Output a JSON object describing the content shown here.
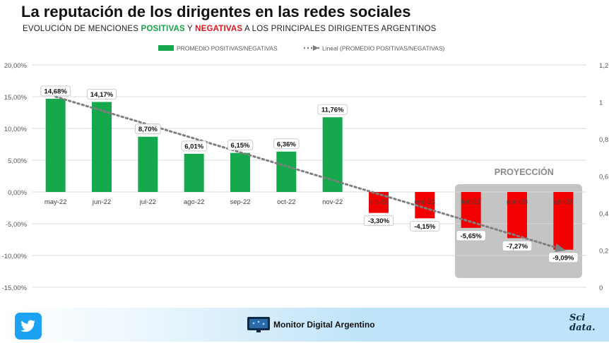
{
  "header": {
    "title": "La reputación de los dirigentes en las redes sociales",
    "subtitle_pre": "EVOLUCIÓN  DE MENCIONES ",
    "subtitle_pos": "POSITIVAS",
    "subtitle_mid": " Y ",
    "subtitle_neg": "NEGATIVAS",
    "subtitle_post": " A LOS PRINCIPALES DIRIGENTES  ARGENTINOS"
  },
  "chart_data": {
    "type": "bar",
    "categories": [
      "may-22",
      "jun-22",
      "jul-22",
      "ago-22",
      "sep-22",
      "oct-22",
      "nov-22",
      "dic-22",
      "ene-23",
      "feb-23",
      "mar-23",
      "abr-23"
    ],
    "series": [
      {
        "name": "PROMEDIO POSITIVAS/NEGATIVAS",
        "values": [
          14.68,
          14.17,
          8.7,
          6.01,
          6.15,
          6.36,
          11.76,
          -3.3,
          -4.15,
          -5.65,
          -7.27,
          -9.09
        ]
      }
    ],
    "value_labels": [
      "14,68%",
      "14,17%",
      "8,70%",
      "6,01%",
      "6,15%",
      "6,36%",
      "11,76%",
      "-3,30%",
      "-4,15%",
      "-5,65%",
      "-7,27%",
      "-9,09%"
    ],
    "trendline": {
      "name": "Lineal (PROMEDIO POSITIVAS/NEGATIVAS)",
      "start": 15.0,
      "end": -9.0
    },
    "ylim": [
      -15,
      20
    ],
    "y_ticks": [
      20,
      15,
      10,
      5,
      0,
      -5,
      -10,
      -15
    ],
    "y_tick_labels": [
      "20,00%",
      "15,00%",
      "10,00%",
      "5,00%",
      "0,00%",
      "-5,00%",
      "-10,00%",
      "-15,00%"
    ],
    "y2_ticks": [
      1.2,
      1,
      0.8,
      0.6,
      0.4,
      0.2,
      0
    ],
    "y2_tick_labels": [
      "1,2",
      "1",
      "0,8",
      "0,6",
      "0,4",
      "0,2",
      "0"
    ],
    "projection_label": "PROYECCIÓN",
    "projection_start_index": 9,
    "legend_position": "top-center",
    "grid": true,
    "colors": {
      "positive": "#16a84c",
      "negative": "#f20000",
      "trend": "#7f7f7f",
      "grid": "#d9d9d9",
      "projection_box": "#c4c4c4"
    }
  },
  "footer": {
    "brand": "Monitor Digital Argentino",
    "logo_line1": "Sci",
    "logo_line2": "data."
  },
  "icons": {
    "twitter": "twitter-bird-icon",
    "monitor": "monitor-screen-icon"
  }
}
